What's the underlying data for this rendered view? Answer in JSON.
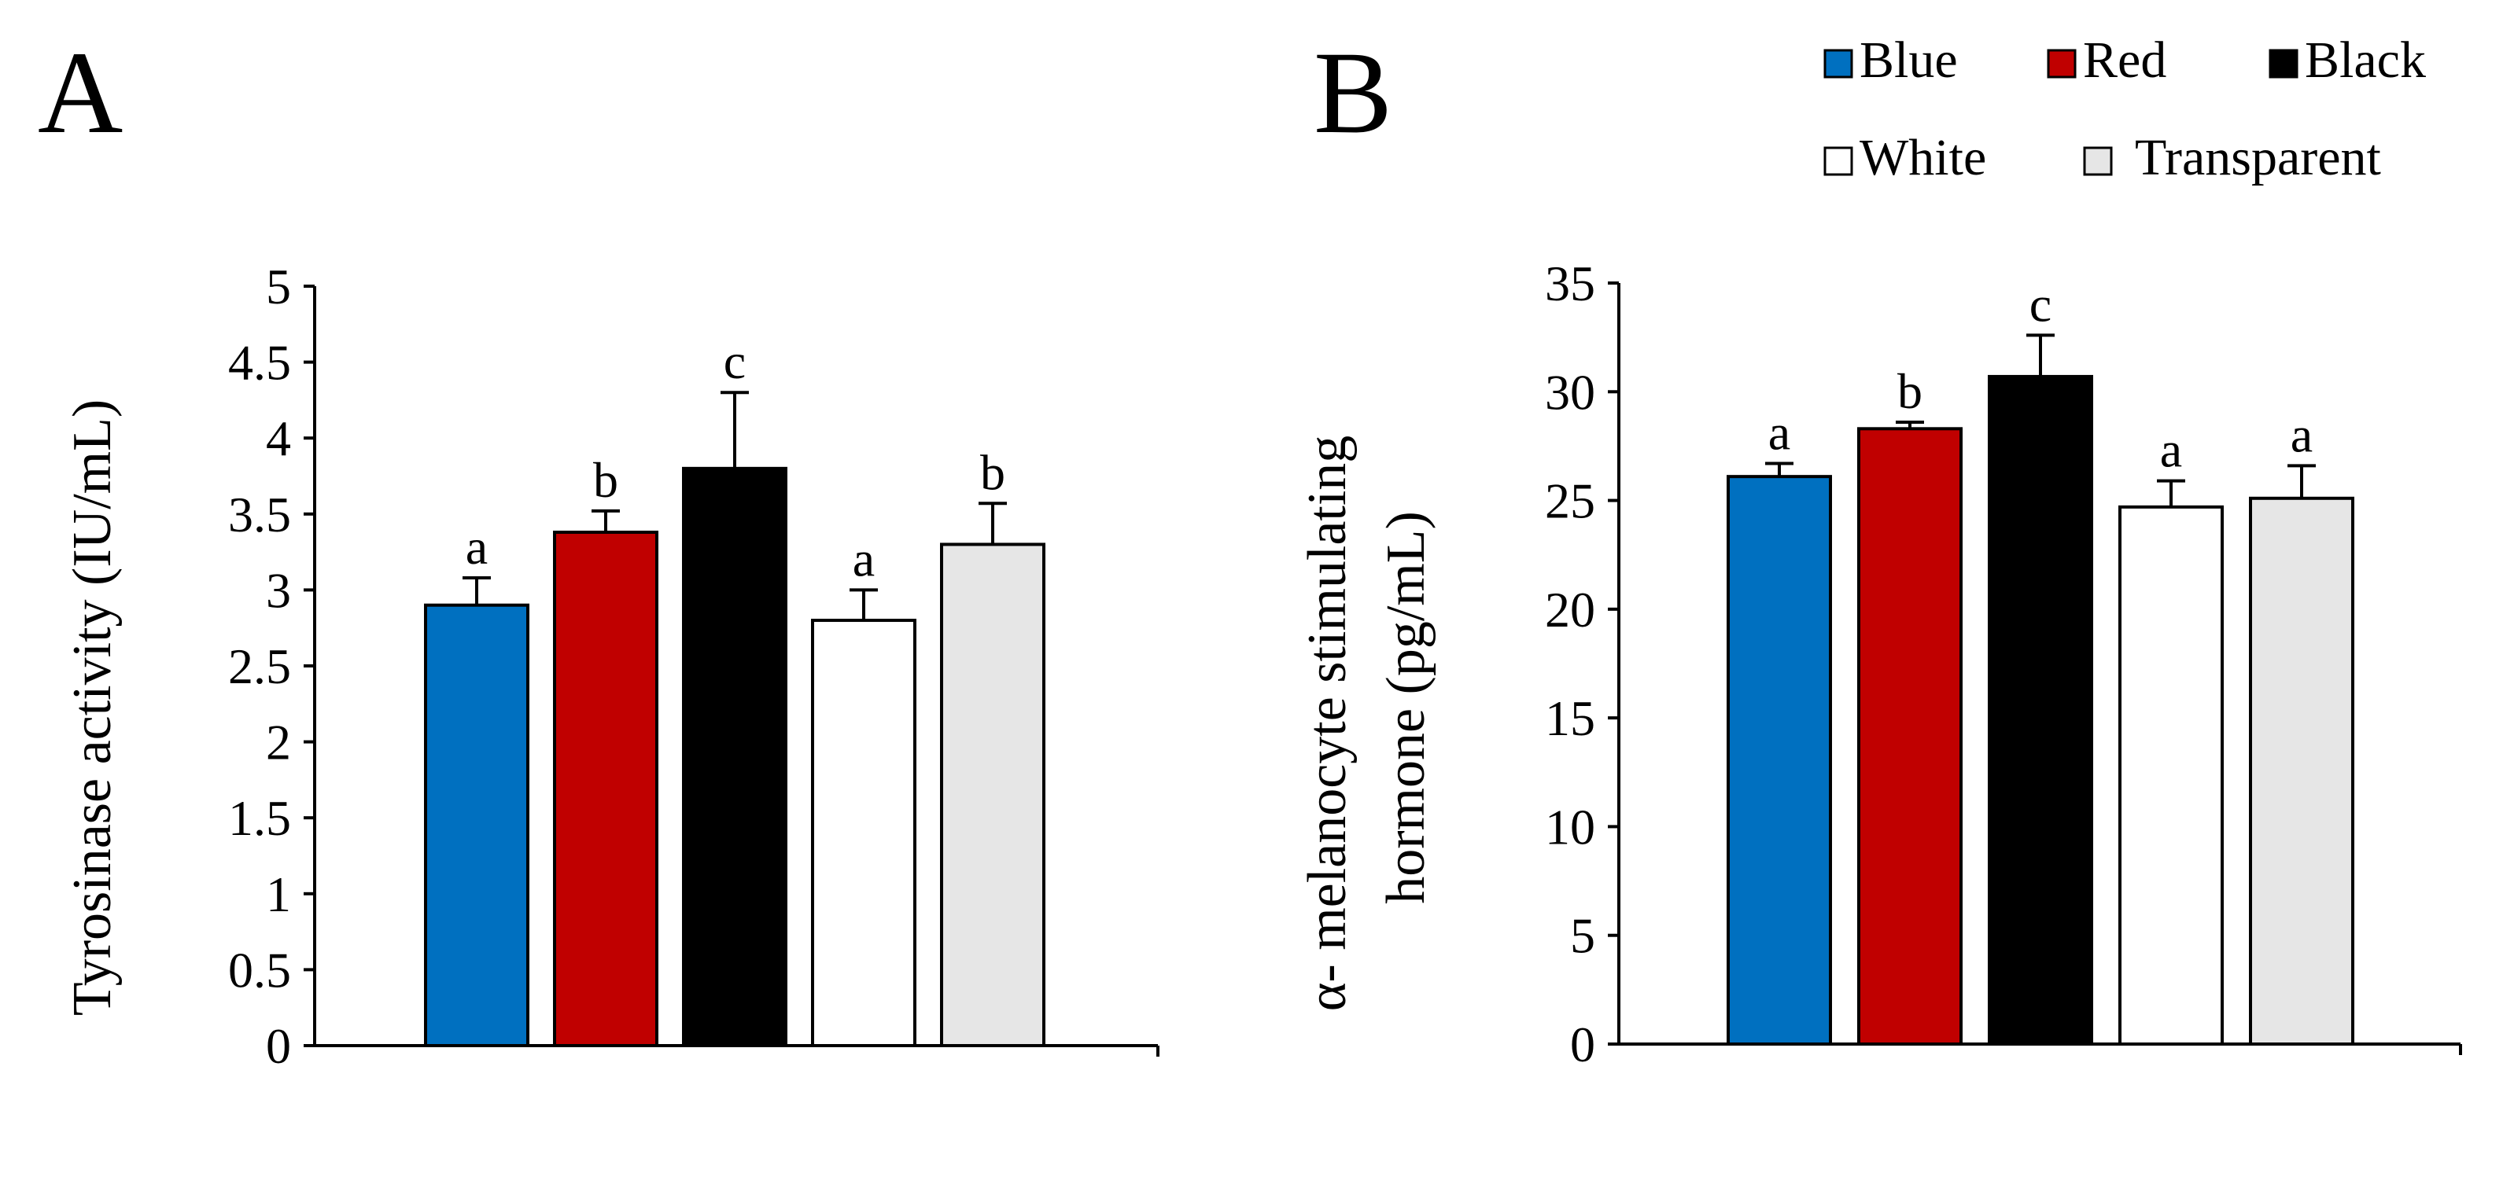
{
  "legend": {
    "items": [
      {
        "label": "Blue",
        "color": "#0070c0"
      },
      {
        "label": "Red",
        "color": "#c00000"
      },
      {
        "label": "Black",
        "color": "#000000"
      },
      {
        "label": "White",
        "color": "#ffffff"
      },
      {
        "label": "Transparent",
        "color": "#e6e6e6"
      }
    ]
  },
  "chart_data": [
    {
      "type": "bar",
      "panel_label": "A",
      "title": "",
      "xlabel": "",
      "ylabel": "Tyrosinase activity (IU/mL)",
      "ylim": [
        0,
        5
      ],
      "yticks": [
        0,
        0.5,
        1,
        1.5,
        2,
        2.5,
        3,
        3.5,
        4,
        4.5,
        5
      ],
      "ytick_labels": [
        "0",
        "0.5",
        "1",
        "1.5",
        "2",
        "2.5",
        "3",
        "3.5",
        "4",
        "4.5",
        "5"
      ],
      "categories": [
        "Blue",
        "Red",
        "Black",
        "White",
        "Transparent"
      ],
      "values": [
        2.9,
        3.38,
        3.8,
        2.8,
        3.3
      ],
      "errors": [
        0.18,
        0.14,
        0.5,
        0.2,
        0.27
      ],
      "significance": [
        "a",
        "b",
        "c",
        "a",
        "b"
      ],
      "colors": [
        "#0070c0",
        "#c00000",
        "#000000",
        "#ffffff",
        "#e6e6e6"
      ],
      "grid": false
    },
    {
      "type": "bar",
      "panel_label": "B",
      "title": "",
      "xlabel": "",
      "ylabel": [
        "α- melanocyte stimulating",
        "hormone (pg/mL)"
      ],
      "ylim": [
        0,
        35
      ],
      "yticks": [
        0,
        5,
        10,
        15,
        20,
        25,
        30,
        35
      ],
      "ytick_labels": [
        "0",
        "5",
        "10",
        "15",
        "20",
        "25",
        "30",
        "35"
      ],
      "categories": [
        "Blue",
        "Red",
        "Black",
        "White",
        "Transparent"
      ],
      "values": [
        26.1,
        28.3,
        30.7,
        24.7,
        25.1
      ],
      "errors": [
        0.6,
        0.3,
        1.9,
        1.2,
        1.5
      ],
      "significance": [
        "a",
        "b",
        "c",
        "a",
        "a"
      ],
      "colors": [
        "#0070c0",
        "#c00000",
        "#000000",
        "#ffffff",
        "#e6e6e6"
      ],
      "grid": false
    }
  ]
}
